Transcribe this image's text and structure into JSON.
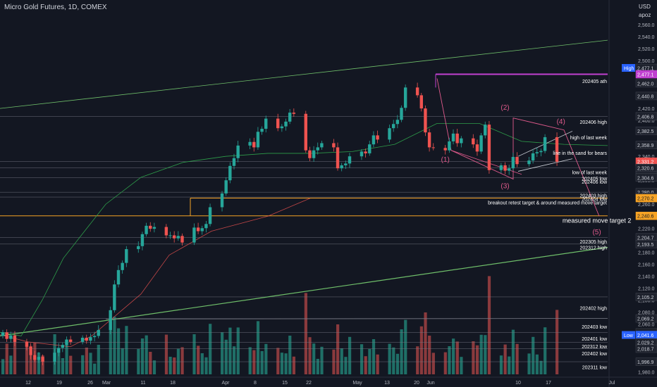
{
  "header": {
    "title": "Micro Gold Futures, 1D, COMEX",
    "currency": "USD",
    "unit_label": "apoz"
  },
  "colors": {
    "up": "#26a69a",
    "down": "#ef5350",
    "vol_up": "#1f6f67",
    "vol_down": "#8a3a3d",
    "pink": "#e05a8c",
    "magenta": "#c040d0",
    "orange": "#f6a325",
    "ma": "#2e9e4a",
    "trend": "#6fbf6a"
  },
  "chart_data": {
    "type": "candlestick",
    "title": "Micro Gold Futures, 1D, COMEX",
    "y_ticks": [
      1980,
      2000,
      2020,
      2040,
      2060,
      2080,
      2100,
      2120,
      2140,
      2160,
      2180,
      2200,
      2220,
      2240,
      2260,
      2280,
      2300,
      2320,
      2340,
      2360,
      2380,
      2400,
      2420,
      2440,
      2460,
      2480,
      2500,
      2520,
      2540,
      2560
    ],
    "x_ticks": [
      "12",
      "19",
      "26",
      "Mar",
      "11",
      "18",
      "Apr",
      "8",
      "15",
      "22",
      "May",
      "13",
      "20",
      "Jun",
      "10",
      "17",
      "Jul"
    ],
    "price_labels": [
      {
        "value": 2477.1,
        "text": "2,477.1",
        "tag": "High"
      },
      {
        "value": 2477.1,
        "text": "2,477.1",
        "tag": ""
      },
      {
        "value": 2462.0,
        "text": "2,462.0",
        "tag": ""
      },
      {
        "value": 2440.8,
        "text": "2,440.8",
        "tag": ""
      },
      {
        "value": 2406.8,
        "text": "2,406.8",
        "tag": ""
      },
      {
        "value": 2382.5,
        "text": "2,382.5",
        "tag": ""
      },
      {
        "value": 2358.9,
        "text": "2,358.9",
        "tag": ""
      },
      {
        "value": 2331.2,
        "text": "2,331.2",
        "tag": "last"
      },
      {
        "value": 2320.6,
        "text": "2,320.6",
        "tag": ""
      },
      {
        "value": 2308.1,
        "text": "2,308.1",
        "tag": ""
      },
      {
        "value": 2304.6,
        "text": "2,304.6",
        "tag": ""
      },
      {
        "value": 2280.0,
        "text": "2,280.0",
        "tag": ""
      },
      {
        "value": 2272.0,
        "text": "2,272.0",
        "tag": ""
      },
      {
        "value": 2270.2,
        "text": "2,270.2",
        "tag": "orange"
      },
      {
        "value": 2240.6,
        "text": "2,240.6",
        "tag": "orange"
      },
      {
        "value": 2204.7,
        "text": "2,204.7",
        "tag": ""
      },
      {
        "value": 2193.5,
        "text": "2,193.5",
        "tag": ""
      },
      {
        "value": 2105.2,
        "text": "2,105.2",
        "tag": ""
      },
      {
        "value": 2069.2,
        "text": "2,069.2",
        "tag": ""
      },
      {
        "value": 2045.9,
        "text": "2,045.9",
        "tag": ""
      },
      {
        "value": 2041.6,
        "text": "2,041.6",
        "tag": "Low"
      },
      {
        "value": 2029.2,
        "text": "2,029.2",
        "tag": ""
      },
      {
        "value": 2018.7,
        "text": "2,018.7",
        "tag": ""
      },
      {
        "value": 1996.9,
        "text": "1,996.9",
        "tag": ""
      }
    ],
    "level_labels": [
      {
        "value": 2466.0,
        "text": "202405 ath"
      },
      {
        "value": 2398.0,
        "text": "202406 high"
      },
      {
        "value": 2372.0,
        "text": "high of last week"
      },
      {
        "value": 2346.0,
        "text": "line in the sand for bears"
      },
      {
        "value": 2314.0,
        "text": "low of last week"
      },
      {
        "value": 2303.0,
        "text": "202405 low"
      },
      {
        "value": 2298.0,
        "text": "202406 low"
      },
      {
        "value": 2275.0,
        "text": "202403 high"
      },
      {
        "value": 2269.0,
        "text": "202404 low"
      },
      {
        "value": 2263.0,
        "text": "breakout retest target & around measured move target"
      },
      {
        "value": 2198.0,
        "text": "202305 high"
      },
      {
        "value": 2188.0,
        "text": "202312 high"
      },
      {
        "value": 2087.0,
        "text": "202402 high"
      },
      {
        "value": 2056.0,
        "text": "202403 low"
      },
      {
        "value": 2036.0,
        "text": "202401 low"
      },
      {
        "value": 2023.0,
        "text": "202312 low"
      },
      {
        "value": 2011.0,
        "text": "202402 low"
      },
      {
        "value": 1988.0,
        "text": "202311 low"
      }
    ],
    "annotations": [
      {
        "text": "(1)",
        "x_day": 111,
        "y": 2331
      },
      {
        "text": "(2)",
        "x_day": 126,
        "y": 2418
      },
      {
        "text": "(3)",
        "x_day": 126,
        "y": 2287
      },
      {
        "text": "(4)",
        "x_day": 140,
        "y": 2394
      },
      {
        "text": "(5)",
        "x_day": 149,
        "y": 2210
      },
      {
        "text": "measured move target 2",
        "x_day": 149,
        "y": 2229
      }
    ],
    "candles": [
      {
        "d": 0,
        "o": 2040,
        "c": 2046
      },
      {
        "d": 1,
        "o": 2046,
        "c": 2035
      },
      {
        "d": 2,
        "o": 2035,
        "c": 2041
      },
      {
        "d": 3,
        "o": 2041,
        "c": 2030
      },
      {
        "d": 6,
        "o": 2030,
        "c": 2022
      },
      {
        "d": 7,
        "o": 2022,
        "c": 2008
      },
      {
        "d": 8,
        "o": 2008,
        "c": 2000
      },
      {
        "d": 9,
        "o": 2000,
        "c": 2005
      },
      {
        "d": 10,
        "o": 2005,
        "c": 1997
      },
      {
        "d": 13,
        "o": 1997,
        "c": 2012
      },
      {
        "d": 14,
        "o": 2012,
        "c": 2020
      },
      {
        "d": 15,
        "o": 2020,
        "c": 2025
      },
      {
        "d": 16,
        "o": 2025,
        "c": 2034
      },
      {
        "d": 17,
        "o": 2034,
        "c": 2030
      },
      {
        "d": 20,
        "o": 2030,
        "c": 2037
      },
      {
        "d": 21,
        "o": 2037,
        "c": 2032
      },
      {
        "d": 22,
        "o": 2032,
        "c": 2038
      },
      {
        "d": 23,
        "o": 2038,
        "c": 2040
      },
      {
        "d": 24,
        "o": 2040,
        "c": 2050
      },
      {
        "d": 27,
        "o": 2050,
        "c": 2083
      },
      {
        "d": 28,
        "o": 2083,
        "c": 2126
      },
      {
        "d": 29,
        "o": 2126,
        "c": 2150
      },
      {
        "d": 30,
        "o": 2150,
        "c": 2162
      },
      {
        "d": 31,
        "o": 2162,
        "c": 2185
      },
      {
        "d": 34,
        "o": 2185,
        "c": 2190
      },
      {
        "d": 35,
        "o": 2190,
        "c": 2210
      },
      {
        "d": 36,
        "o": 2210,
        "c": 2224
      },
      {
        "d": 37,
        "o": 2224,
        "c": 2219
      },
      {
        "d": 38,
        "o": 2219,
        "c": 2222
      },
      {
        "d": 41,
        "o": 2222,
        "c": 2208
      },
      {
        "d": 42,
        "o": 2208,
        "c": 2208
      },
      {
        "d": 43,
        "o": 2208,
        "c": 2203
      },
      {
        "d": 44,
        "o": 2203,
        "c": 2207
      },
      {
        "d": 45,
        "o": 2207,
        "c": 2196
      },
      {
        "d": 48,
        "o": 2196,
        "c": 2221
      },
      {
        "d": 49,
        "o": 2221,
        "c": 2215
      },
      {
        "d": 50,
        "o": 2215,
        "c": 2220
      },
      {
        "d": 51,
        "o": 2220,
        "c": 2227
      },
      {
        "d": 52,
        "o": 2227,
        "c": 2255
      },
      {
        "d": 55,
        "o": 2255,
        "c": 2278
      },
      {
        "d": 56,
        "o": 2278,
        "c": 2300
      },
      {
        "d": 57,
        "o": 2300,
        "c": 2324
      },
      {
        "d": 58,
        "o": 2324,
        "c": 2337
      },
      {
        "d": 59,
        "o": 2337,
        "c": 2358
      },
      {
        "d": 62,
        "o": 2358,
        "c": 2364
      },
      {
        "d": 63,
        "o": 2364,
        "c": 2355
      },
      {
        "d": 64,
        "o": 2355,
        "c": 2381
      },
      {
        "d": 65,
        "o": 2381,
        "c": 2386
      },
      {
        "d": 66,
        "o": 2386,
        "c": 2403
      },
      {
        "d": 69,
        "o": 2403,
        "c": 2387
      },
      {
        "d": 70,
        "o": 2387,
        "c": 2390
      },
      {
        "d": 71,
        "o": 2390,
        "c": 2398
      },
      {
        "d": 72,
        "o": 2398,
        "c": 2413
      },
      {
        "d": 73,
        "o": 2413,
        "c": 2411
      },
      {
        "d": 76,
        "o": 2411,
        "c": 2350
      },
      {
        "d": 77,
        "o": 2350,
        "c": 2337
      },
      {
        "d": 78,
        "o": 2337,
        "c": 2350
      },
      {
        "d": 79,
        "o": 2350,
        "c": 2355
      },
      {
        "d": 80,
        "o": 2355,
        "c": 2362
      },
      {
        "d": 83,
        "o": 2362,
        "c": 2355
      },
      {
        "d": 84,
        "o": 2355,
        "c": 2320
      },
      {
        "d": 85,
        "o": 2320,
        "c": 2325
      },
      {
        "d": 86,
        "o": 2325,
        "c": 2328
      },
      {
        "d": 87,
        "o": 2328,
        "c": 2340
      },
      {
        "d": 90,
        "o": 2340,
        "c": 2348
      },
      {
        "d": 91,
        "o": 2348,
        "c": 2345
      },
      {
        "d": 92,
        "o": 2345,
        "c": 2360
      },
      {
        "d": 93,
        "o": 2360,
        "c": 2375
      },
      {
        "d": 94,
        "o": 2375,
        "c": 2368
      },
      {
        "d": 97,
        "o": 2368,
        "c": 2387
      },
      {
        "d": 98,
        "o": 2387,
        "c": 2394
      },
      {
        "d": 99,
        "o": 2394,
        "c": 2401
      },
      {
        "d": 100,
        "o": 2401,
        "c": 2421
      },
      {
        "d": 101,
        "o": 2421,
        "c": 2455
      },
      {
        "d": 104,
        "o": 2455,
        "c": 2442
      },
      {
        "d": 105,
        "o": 2442,
        "c": 2420
      },
      {
        "d": 106,
        "o": 2420,
        "c": 2380
      },
      {
        "d": 107,
        "o": 2380,
        "c": 2355
      },
      {
        "d": 108,
        "o": 2355,
        "c": 2354
      },
      {
        "d": 111,
        "o": 2354,
        "c": 2350
      },
      {
        "d": 112,
        "o": 2350,
        "c": 2365
      },
      {
        "d": 113,
        "o": 2365,
        "c": 2378
      },
      {
        "d": 114,
        "o": 2378,
        "c": 2362
      },
      {
        "d": 115,
        "o": 2362,
        "c": 2370
      },
      {
        "d": 118,
        "o": 2370,
        "c": 2360
      },
      {
        "d": 119,
        "o": 2360,
        "c": 2348
      },
      {
        "d": 120,
        "o": 2348,
        "c": 2375
      },
      {
        "d": 121,
        "o": 2375,
        "c": 2393
      },
      {
        "d": 122,
        "o": 2393,
        "c": 2317
      },
      {
        "d": 125,
        "o": 2317,
        "c": 2325
      },
      {
        "d": 126,
        "o": 2325,
        "c": 2316
      },
      {
        "d": 127,
        "o": 2316,
        "c": 2320
      },
      {
        "d": 128,
        "o": 2320,
        "c": 2339
      },
      {
        "d": 129,
        "o": 2339,
        "c": 2327
      },
      {
        "d": 132,
        "o": 2327,
        "c": 2333
      },
      {
        "d": 133,
        "o": 2333,
        "c": 2345
      },
      {
        "d": 134,
        "o": 2345,
        "c": 2347
      },
      {
        "d": 135,
        "o": 2347,
        "c": 2349
      },
      {
        "d": 136,
        "o": 2349,
        "c": 2372
      },
      {
        "d": 139,
        "o": 2372,
        "c": 2331
      }
    ]
  }
}
